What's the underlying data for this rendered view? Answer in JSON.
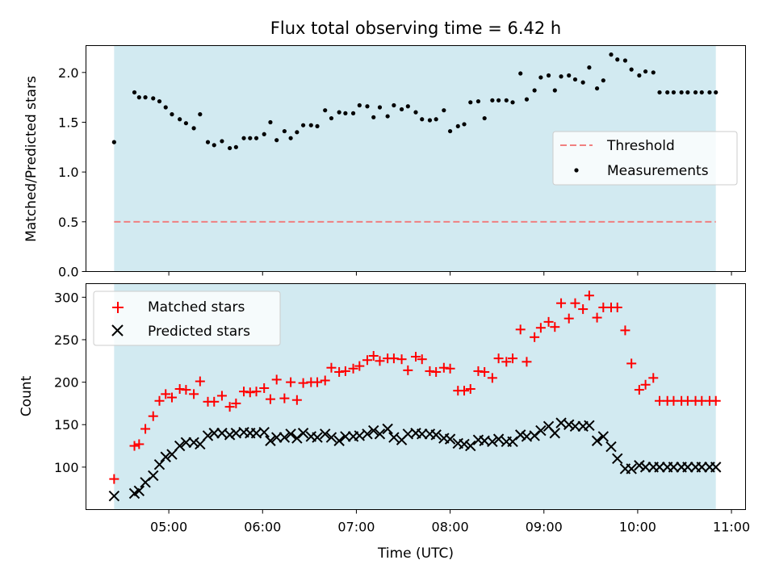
{
  "figure": {
    "title": "Flux total observing time = 6.42 h",
    "xlabel": "Time (UTC)",
    "x_ticks": [
      "05:00",
      "06:00",
      "07:00",
      "08:00",
      "09:00",
      "10:00",
      "11:00"
    ],
    "observing_window": [
      "04:25",
      "10:50"
    ],
    "shade_color": "#add8e6"
  },
  "chart_data": [
    {
      "type": "scatter",
      "ylabel": "Matched/Predicted stars",
      "xlim": [
        "04:07",
        "11:09"
      ],
      "ylim": [
        0.0,
        2.27
      ],
      "y_ticks": [
        "0.0",
        "0.5",
        "1.0",
        "1.5",
        "2.0"
      ],
      "threshold": 0.5,
      "legend": {
        "position": "center-right",
        "entries": [
          "Threshold",
          "Measurements"
        ]
      },
      "series": [
        {
          "name": "Threshold",
          "kind": "dashed-line",
          "color": "#f08080",
          "x": [
            "04:25",
            "10:50"
          ],
          "y": [
            0.5,
            0.5
          ]
        },
        {
          "name": "Measurements",
          "kind": "dot",
          "color": "#000000",
          "x": [
            "04:25",
            "04:38",
            "04:41",
            "04:45",
            "04:50",
            "04:54",
            "04:58",
            "05:02",
            "05:07",
            "05:11",
            "05:16",
            "05:20",
            "05:25",
            "05:29",
            "05:34",
            "05:39",
            "05:43",
            "05:48",
            "05:52",
            "05:56",
            "06:01",
            "06:05",
            "06:09",
            "06:14",
            "06:18",
            "06:22",
            "06:26",
            "06:31",
            "06:35",
            "06:40",
            "06:44",
            "06:49",
            "06:53",
            "06:58",
            "07:02",
            "07:07",
            "07:11",
            "07:15",
            "07:20",
            "07:24",
            "07:29",
            "07:33",
            "07:38",
            "07:42",
            "07:47",
            "07:51",
            "07:56",
            "08:00",
            "08:05",
            "08:09",
            "08:13",
            "08:18",
            "08:22",
            "08:27",
            "08:31",
            "08:36",
            "08:40",
            "08:45",
            "08:49",
            "08:54",
            "08:58",
            "09:03",
            "09:07",
            "09:11",
            "09:16",
            "09:20",
            "09:25",
            "09:29",
            "09:34",
            "09:38",
            "09:43",
            "09:47",
            "09:52",
            "09:56",
            "10:01",
            "10:05",
            "10:10",
            "10:14",
            "10:19",
            "10:23",
            "10:28",
            "10:32",
            "10:37",
            "10:41",
            "10:46",
            "10:50"
          ],
          "y": [
            1.3,
            1.8,
            1.75,
            1.75,
            1.74,
            1.71,
            1.65,
            1.58,
            1.53,
            1.49,
            1.44,
            1.58,
            1.3,
            1.27,
            1.31,
            1.24,
            1.25,
            1.34,
            1.34,
            1.34,
            1.38,
            1.5,
            1.32,
            1.41,
            1.34,
            1.4,
            1.47,
            1.47,
            1.46,
            1.62,
            1.54,
            1.6,
            1.59,
            1.59,
            1.67,
            1.66,
            1.55,
            1.65,
            1.56,
            1.67,
            1.63,
            1.66,
            1.6,
            1.53,
            1.52,
            1.53,
            1.62,
            1.41,
            1.46,
            1.48,
            1.7,
            1.71,
            1.54,
            1.72,
            1.72,
            1.72,
            1.7,
            1.99,
            1.73,
            1.82,
            1.95,
            1.97,
            1.82,
            1.96,
            1.97,
            1.93,
            1.9,
            2.05,
            1.84,
            1.92,
            2.18,
            2.13,
            2.12,
            2.03,
            1.97,
            2.01,
            2.0,
            1.8,
            1.8,
            1.8,
            1.8,
            1.8,
            1.8,
            1.8,
            1.8,
            1.8
          ]
        }
      ]
    },
    {
      "type": "scatter",
      "ylabel": "Count",
      "xlim": [
        "04:07",
        "11:09"
      ],
      "ylim": [
        50,
        316
      ],
      "y_ticks": [
        "100",
        "150",
        "200",
        "250",
        "300"
      ],
      "legend": {
        "position": "top-left",
        "entries": [
          "Matched stars",
          "Predicted stars"
        ]
      },
      "series": [
        {
          "name": "Matched stars",
          "kind": "plus",
          "color": "#ff0000",
          "x": [
            "04:25",
            "04:38",
            "04:41",
            "04:45",
            "04:50",
            "04:54",
            "04:58",
            "05:02",
            "05:07",
            "05:11",
            "05:16",
            "05:20",
            "05:25",
            "05:29",
            "05:34",
            "05:39",
            "05:43",
            "05:48",
            "05:52",
            "05:56",
            "06:01",
            "06:05",
            "06:09",
            "06:14",
            "06:18",
            "06:22",
            "06:26",
            "06:31",
            "06:35",
            "06:40",
            "06:44",
            "06:49",
            "06:53",
            "06:58",
            "07:02",
            "07:07",
            "07:11",
            "07:15",
            "07:20",
            "07:24",
            "07:29",
            "07:33",
            "07:38",
            "07:42",
            "07:47",
            "07:51",
            "07:56",
            "08:00",
            "08:05",
            "08:09",
            "08:13",
            "08:18",
            "08:22",
            "08:27",
            "08:31",
            "08:36",
            "08:40",
            "08:45",
            "08:49",
            "08:54",
            "08:58",
            "09:03",
            "09:07",
            "09:11",
            "09:16",
            "09:20",
            "09:25",
            "09:29",
            "09:34",
            "09:38",
            "09:43",
            "09:47",
            "09:52",
            "09:56",
            "10:01",
            "10:05",
            "10:10",
            "10:14",
            "10:19",
            "10:23",
            "10:28",
            "10:32",
            "10:37",
            "10:41",
            "10:46",
            "10:50"
          ],
          "y": [
            86,
            125,
            127,
            145,
            160,
            178,
            186,
            182,
            192,
            191,
            186,
            201,
            177,
            177,
            184,
            171,
            175,
            189,
            188,
            189,
            193,
            180,
            203,
            181,
            200,
            179,
            199,
            200,
            200,
            202,
            217,
            212,
            213,
            216,
            219,
            226,
            231,
            225,
            228,
            228,
            227,
            214,
            230,
            227,
            213,
            212,
            217,
            216,
            190,
            190,
            192,
            213,
            212,
            205,
            228,
            224,
            228,
            262,
            224,
            253,
            264,
            271,
            265,
            293,
            275,
            293,
            286,
            302,
            276,
            288,
            288,
            288,
            261,
            222,
            191,
            197,
            205,
            178,
            178,
            178,
            178,
            178,
            178,
            178,
            178,
            178
          ]
        },
        {
          "name": "Predicted stars",
          "kind": "x",
          "color": "#000000",
          "x": [
            "04:25",
            "04:38",
            "04:41",
            "04:45",
            "04:50",
            "04:54",
            "04:58",
            "05:02",
            "05:07",
            "05:11",
            "05:16",
            "05:20",
            "05:25",
            "05:29",
            "05:34",
            "05:39",
            "05:43",
            "05:48",
            "05:52",
            "05:56",
            "06:01",
            "06:05",
            "06:09",
            "06:14",
            "06:18",
            "06:22",
            "06:26",
            "06:31",
            "06:35",
            "06:40",
            "06:44",
            "06:49",
            "06:53",
            "06:58",
            "07:02",
            "07:07",
            "07:11",
            "07:15",
            "07:20",
            "07:24",
            "07:29",
            "07:33",
            "07:38",
            "07:42",
            "07:47",
            "07:51",
            "07:56",
            "08:00",
            "08:05",
            "08:09",
            "08:13",
            "08:18",
            "08:22",
            "08:27",
            "08:31",
            "08:36",
            "08:40",
            "08:45",
            "08:49",
            "08:54",
            "08:58",
            "09:03",
            "09:07",
            "09:11",
            "09:16",
            "09:20",
            "09:25",
            "09:29",
            "09:34",
            "09:38",
            "09:43",
            "09:47",
            "09:52",
            "09:56",
            "10:01",
            "10:05",
            "10:10",
            "10:14",
            "10:19",
            "10:23",
            "10:28",
            "10:32",
            "10:37",
            "10:41",
            "10:46",
            "10:50"
          ],
          "y": [
            66,
            69,
            72,
            82,
            90,
            103,
            112,
            115,
            125,
            129,
            129,
            127,
            137,
            140,
            140,
            138,
            140,
            141,
            140,
            140,
            141,
            131,
            135,
            135,
            139,
            134,
            140,
            136,
            135,
            139,
            135,
            131,
            136,
            136,
            137,
            139,
            143,
            139,
            145,
            135,
            132,
            139,
            140,
            139,
            139,
            138,
            134,
            133,
            128,
            127,
            125,
            132,
            131,
            130,
            133,
            130,
            130,
            138,
            136,
            137,
            143,
            148,
            140,
            152,
            150,
            148,
            148,
            149,
            131,
            136,
            124,
            110,
            98,
            98,
            102,
            100,
            100,
            100,
            100,
            100,
            100,
            100,
            100,
            100,
            100,
            100
          ]
        }
      ]
    }
  ]
}
